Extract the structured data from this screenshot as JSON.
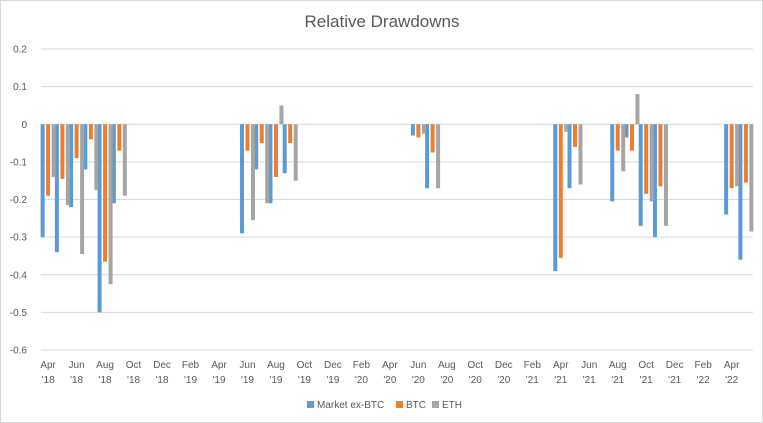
{
  "chart_data": {
    "type": "bar",
    "title": "Relative Drawdowns",
    "xlabel": "",
    "ylabel": "",
    "ylim": [
      -0.6,
      0.2
    ],
    "yticks": [
      0.2,
      0.1,
      0,
      -0.1,
      -0.2,
      -0.3,
      -0.4,
      -0.5,
      -0.6
    ],
    "grid": "horizontal",
    "legend_position": "bottom",
    "x_tick_labels": [
      {
        "month": "Apr",
        "year": "'18"
      },
      {
        "month": "Jun",
        "year": "'18"
      },
      {
        "month": "Aug",
        "year": "'18"
      },
      {
        "month": "Oct",
        "year": "'18"
      },
      {
        "month": "Dec",
        "year": "'18"
      },
      {
        "month": "Feb",
        "year": "'19"
      },
      {
        "month": "Apr",
        "year": "'19"
      },
      {
        "month": "Jun",
        "year": "'19"
      },
      {
        "month": "Aug",
        "year": "'19"
      },
      {
        "month": "Oct",
        "year": "'19"
      },
      {
        "month": "Dec",
        "year": "'19"
      },
      {
        "month": "Feb",
        "year": "'20"
      },
      {
        "month": "Apr",
        "year": "'20"
      },
      {
        "month": "Jun",
        "year": "'20"
      },
      {
        "month": "Aug",
        "year": "'20"
      },
      {
        "month": "Oct",
        "year": "'20"
      },
      {
        "month": "Dec",
        "year": "'20"
      },
      {
        "month": "Feb",
        "year": "'21"
      },
      {
        "month": "Apr",
        "year": "'21"
      },
      {
        "month": "Jun",
        "year": "'21"
      },
      {
        "month": "Aug",
        "year": "'21"
      },
      {
        "month": "Oct",
        "year": "'21"
      },
      {
        "month": "Dec",
        "year": "'21"
      },
      {
        "month": "Feb",
        "year": "'22"
      },
      {
        "month": "Apr",
        "year": "'22"
      }
    ],
    "categories": [
      "Apr '18",
      "May '18",
      "Jun '18",
      "Jul '18",
      "Aug '18",
      "Sep '18",
      "Oct '18",
      "Nov '18",
      "Dec '18",
      "Jan '19",
      "Feb '19",
      "Mar '19",
      "Apr '19",
      "May '19",
      "Jun '19",
      "Jul '19",
      "Aug '19",
      "Sep '19",
      "Oct '19",
      "Nov '19",
      "Dec '19",
      "Jan '20",
      "Feb '20",
      "Mar '20",
      "Apr '20",
      "May '20",
      "Jun '20",
      "Jul '20",
      "Aug '20",
      "Sep '20",
      "Oct '20",
      "Nov '20",
      "Dec '20",
      "Jan '21",
      "Feb '21",
      "Mar '21",
      "Apr '21",
      "May '21",
      "Jun '21",
      "Jul '21",
      "Aug '21",
      "Sep '21",
      "Oct '21",
      "Nov '21",
      "Dec '21",
      "Jan '22",
      "Feb '22",
      "Mar '22",
      "Apr '22",
      "May '22"
    ],
    "series": [
      {
        "name": "Market ex-BTC",
        "color": "#5b9bd5",
        "values": [
          -0.3,
          -0.34,
          -0.22,
          -0.12,
          -0.5,
          -0.21,
          0,
          0,
          0,
          0,
          0,
          0,
          0,
          0,
          -0.29,
          -0.12,
          -0.21,
          -0.13,
          0,
          0,
          0,
          0,
          0,
          0,
          0,
          0,
          -0.03,
          -0.17,
          0,
          0,
          0,
          0,
          0,
          0,
          0,
          0,
          -0.39,
          -0.17,
          0,
          0,
          -0.205,
          -0.035,
          -0.27,
          -0.3,
          0,
          0,
          0,
          0,
          -0.24,
          -0.36
        ]
      },
      {
        "name": "BTC",
        "color": "#ed7d31",
        "values": [
          -0.19,
          -0.145,
          -0.09,
          -0.04,
          -0.365,
          -0.07,
          0,
          0,
          0,
          0,
          0,
          0,
          0,
          0,
          -0.07,
          -0.05,
          -0.14,
          -0.05,
          0,
          0,
          0,
          0,
          0,
          0,
          0,
          0,
          -0.035,
          -0.075,
          0,
          0,
          0,
          0,
          0,
          0,
          0,
          0,
          -0.355,
          -0.06,
          0,
          0,
          -0.07,
          -0.07,
          -0.185,
          -0.165,
          0,
          0,
          0,
          0,
          -0.17,
          -0.155
        ]
      },
      {
        "name": "ETH",
        "color": "#a5a5a5",
        "values": [
          -0.14,
          -0.215,
          -0.345,
          -0.175,
          -0.425,
          -0.19,
          0,
          0,
          0,
          0,
          0,
          0,
          0,
          0,
          -0.255,
          -0.21,
          0.05,
          -0.15,
          0,
          0,
          0,
          0,
          0,
          0,
          0,
          0,
          -0.025,
          -0.17,
          0,
          0,
          0,
          0,
          0,
          0,
          0,
          0,
          -0.02,
          -0.16,
          0,
          0,
          -0.125,
          0.08,
          -0.205,
          -0.27,
          0,
          0,
          0,
          0,
          -0.165,
          -0.285
        ]
      }
    ],
    "positions": [
      0,
      1,
      2,
      3,
      4,
      5,
      6,
      7,
      8,
      9,
      10,
      11,
      12,
      13,
      14,
      15,
      16,
      17,
      18,
      19,
      20,
      21,
      22,
      23,
      24,
      25,
      26,
      27,
      28,
      29,
      30,
      31,
      32,
      33,
      34,
      35,
      36,
      37,
      38,
      39,
      40,
      41,
      42,
      43,
      44,
      45,
      46,
      47,
      48,
      49
    ]
  }
}
